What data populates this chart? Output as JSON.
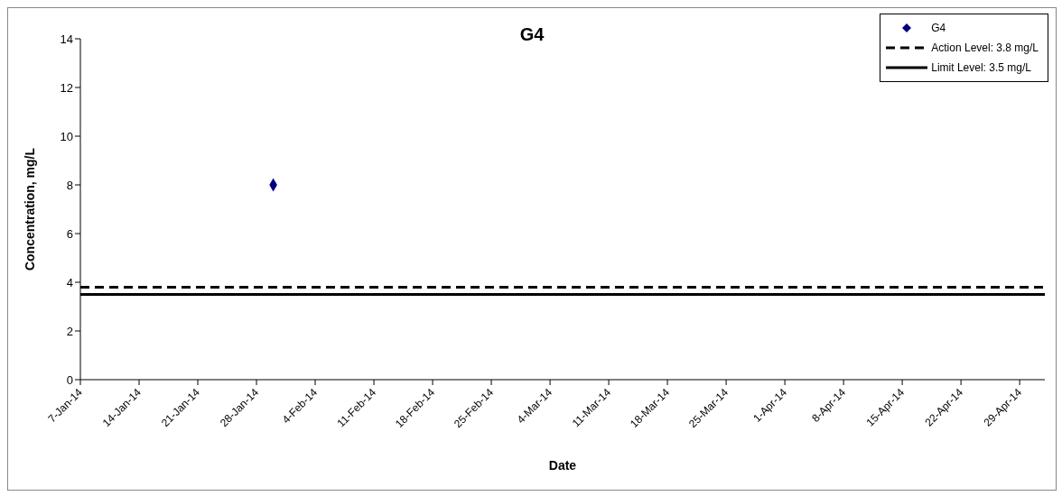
{
  "chart_data": {
    "type": "scatter",
    "title": "G4",
    "xlabel": "Date",
    "ylabel": "Concentration, mg/L",
    "xlim": [
      "--01-07",
      "--05-02"
    ],
    "xticks": [
      {
        "value": "--01-07",
        "label": "7-Jan-14"
      },
      {
        "value": "--01-14",
        "label": "14-Jan-14"
      },
      {
        "value": "--01-21",
        "label": "21-Jan-14"
      },
      {
        "value": "--01-28",
        "label": "28-Jan-14"
      },
      {
        "value": "--02-04",
        "label": "4-Feb-14"
      },
      {
        "value": "--02-11",
        "label": "11-Feb-14"
      },
      {
        "value": "--02-18",
        "label": "18-Feb-14"
      },
      {
        "value": "--02-25",
        "label": "25-Feb-14"
      },
      {
        "value": "--03-04",
        "label": "4-Mar-14"
      },
      {
        "value": "--03-11",
        "label": "11-Mar-14"
      },
      {
        "value": "--03-18",
        "label": "18-Mar-14"
      },
      {
        "value": "--03-25",
        "label": "25-Mar-14"
      },
      {
        "value": "--04-01",
        "label": "1-Apr-14"
      },
      {
        "value": "--04-08",
        "label": "8-Apr-14"
      },
      {
        "value": "--04-15",
        "label": "15-Apr-14"
      },
      {
        "value": "--04-22",
        "label": "22-Apr-14"
      },
      {
        "value": "--04-29",
        "label": "29-Apr-14"
      }
    ],
    "ylim": [
      0,
      14
    ],
    "yticks": [
      0,
      2,
      4,
      6,
      8,
      10,
      12,
      14
    ],
    "grid": false,
    "legend": "top right",
    "series": [
      {
        "name": "G4",
        "marker": "diamond",
        "color": "#000080",
        "x": [
          "--01-30"
        ],
        "values": [
          8
        ]
      },
      {
        "name": "Action Level: 3.8 mg/L",
        "type": "line",
        "line_style": "dashed",
        "color": "#000000",
        "x": [
          "--01-07",
          "--05-02"
        ],
        "values": [
          3.8,
          3.8
        ]
      },
      {
        "name": "Limit Level: 3.5 mg/L",
        "type": "line",
        "line_style": "solid",
        "color": "#000000",
        "x": [
          "--01-07",
          "--05-02"
        ],
        "values": [
          3.5,
          3.5
        ]
      }
    ]
  }
}
